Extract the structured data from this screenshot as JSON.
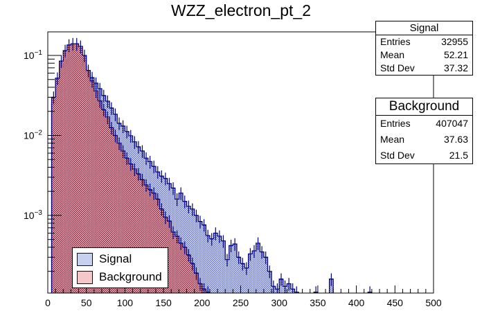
{
  "chart_data": {
    "type": "histogram",
    "title": "WZZ_electron_pt_2",
    "xlabel": "",
    "ylabel": "",
    "xlim": [
      0,
      500
    ],
    "ylim": [
      0.000107,
      0.197
    ],
    "yscale": "log",
    "bin_width": 5,
    "x_ticks": [
      "0",
      "50",
      "100",
      "150",
      "200",
      "250",
      "300",
      "350",
      "400",
      "450",
      "500"
    ],
    "y_ticks": [
      {
        "value": 0.1,
        "base": "10",
        "exp": "-1"
      },
      {
        "value": 0.01,
        "base": "10",
        "exp": "-2"
      },
      {
        "value": 0.001,
        "base": "10",
        "exp": "-3"
      }
    ],
    "legend_position": "bottom-left",
    "series": [
      {
        "name": "Background",
        "fill": "#f4c8c8",
        "hatch": "#8b1a3a",
        "line": "#000080",
        "bins": [
          [
            5,
            0.03
          ],
          [
            10,
            0.052
          ],
          [
            15,
            0.085
          ],
          [
            20,
            0.115
          ],
          [
            25,
            0.135
          ],
          [
            30,
            0.14
          ],
          [
            35,
            0.14
          ],
          [
            40,
            0.13
          ],
          [
            45,
            0.1
          ],
          [
            50,
            0.065
          ],
          [
            55,
            0.048
          ],
          [
            60,
            0.036
          ],
          [
            65,
            0.027
          ],
          [
            70,
            0.021
          ],
          [
            75,
            0.017
          ],
          [
            80,
            0.0125
          ],
          [
            85,
            0.01
          ],
          [
            90,
            0.008
          ],
          [
            95,
            0.0064
          ],
          [
            100,
            0.0052
          ],
          [
            105,
            0.0044
          ],
          [
            110,
            0.0038
          ],
          [
            115,
            0.0033
          ],
          [
            120,
            0.0028
          ],
          [
            125,
            0.0024
          ],
          [
            130,
            0.0021
          ],
          [
            135,
            0.0019
          ],
          [
            140,
            0.0016
          ],
          [
            145,
            0.0012
          ],
          [
            150,
            0.00095
          ],
          [
            155,
            0.00085
          ],
          [
            160,
            0.00062
          ],
          [
            165,
            0.00055
          ],
          [
            170,
            0.00045
          ],
          [
            175,
            0.0004
          ],
          [
            180,
            0.00032
          ],
          [
            185,
            0.00025
          ],
          [
            190,
            0.00019
          ],
          [
            195,
            0.00014
          ],
          [
            200,
            0.00012
          ],
          [
            205,
            0.00011
          ]
        ]
      },
      {
        "name": "Signal",
        "fill": "#c8d0f0",
        "hatch": "#3040b0",
        "line": "#000080",
        "bins": [
          [
            5,
            0.0248
          ],
          [
            10,
            0.0433
          ],
          [
            15,
            0.0713
          ],
          [
            20,
            0.0787
          ],
          [
            25,
            0.0887
          ],
          [
            30,
            0.096
          ],
          [
            35,
            0.1
          ],
          [
            40,
            0.0942
          ],
          [
            45,
            0.0727
          ],
          [
            50,
            0.062
          ],
          [
            55,
            0.0528
          ],
          [
            60,
            0.045
          ],
          [
            65,
            0.0384
          ],
          [
            70,
            0.0315
          ],
          [
            75,
            0.0268
          ],
          [
            80,
            0.022
          ],
          [
            85,
            0.0184
          ],
          [
            90,
            0.0142
          ],
          [
            95,
            0.0131
          ],
          [
            100,
            0.0112
          ],
          [
            105,
            0.0099
          ],
          [
            110,
            0.0083
          ],
          [
            115,
            0.0072
          ],
          [
            120,
            0.0064
          ],
          [
            125,
            0.0052
          ],
          [
            130,
            0.0047
          ],
          [
            135,
            0.0041
          ],
          [
            140,
            0.0035
          ],
          [
            145,
            0.0031
          ],
          [
            150,
            0.0029
          ],
          [
            155,
            0.0025
          ],
          [
            160,
            0.0022
          ],
          [
            165,
            0.0016
          ],
          [
            170,
            0.0019
          ],
          [
            175,
            0.0015
          ],
          [
            180,
            0.0013
          ],
          [
            185,
            0.0012
          ],
          [
            190,
            0.001
          ],
          [
            195,
            0.00084
          ],
          [
            200,
            0.00076
          ],
          [
            205,
            0.00056
          ],
          [
            210,
            0.00051
          ],
          [
            215,
            0.0006
          ],
          [
            220,
            0.00055
          ],
          [
            225,
            0.00048
          ],
          [
            230,
            0.00028
          ],
          [
            235,
            0.00042
          ],
          [
            240,
            0.00044
          ],
          [
            245,
            0.0003
          ],
          [
            250,
            0.00025
          ],
          [
            255,
            0.00022
          ],
          [
            260,
            0.00033
          ],
          [
            265,
            0.00036
          ],
          [
            270,
            0.00045
          ],
          [
            275,
            0.00035
          ],
          [
            280,
            0.0003
          ],
          [
            285,
            0.0002
          ],
          [
            290,
            0.00013
          ],
          [
            295,
            0.00012
          ],
          [
            300,
            0.00016
          ],
          [
            305,
            0.00013
          ],
          [
            310,
            0.00014
          ],
          [
            315,
            0.00012
          ],
          [
            320,
            0.00011
          ],
          [
            345,
            0.00011
          ],
          [
            365,
            0.00016
          ],
          [
            415,
            0.00011
          ]
        ]
      }
    ]
  },
  "stats": {
    "signal": {
      "title": "Signal",
      "rows": [
        {
          "label": "Entries",
          "value": "32955"
        },
        {
          "label": "Mean",
          "value": "52.21"
        },
        {
          "label": "Std Dev",
          "value": "37.32"
        }
      ]
    },
    "background": {
      "title": "Background",
      "rows": [
        {
          "label": "Entries",
          "value": "407047"
        },
        {
          "label": "Mean",
          "value": "37.63"
        },
        {
          "label": "Std Dev",
          "value": "21.5"
        }
      ]
    }
  },
  "legend": [
    {
      "label": "Signal",
      "color": "#c8d0f0"
    },
    {
      "label": "Background",
      "color": "#f4c8c8"
    }
  ]
}
